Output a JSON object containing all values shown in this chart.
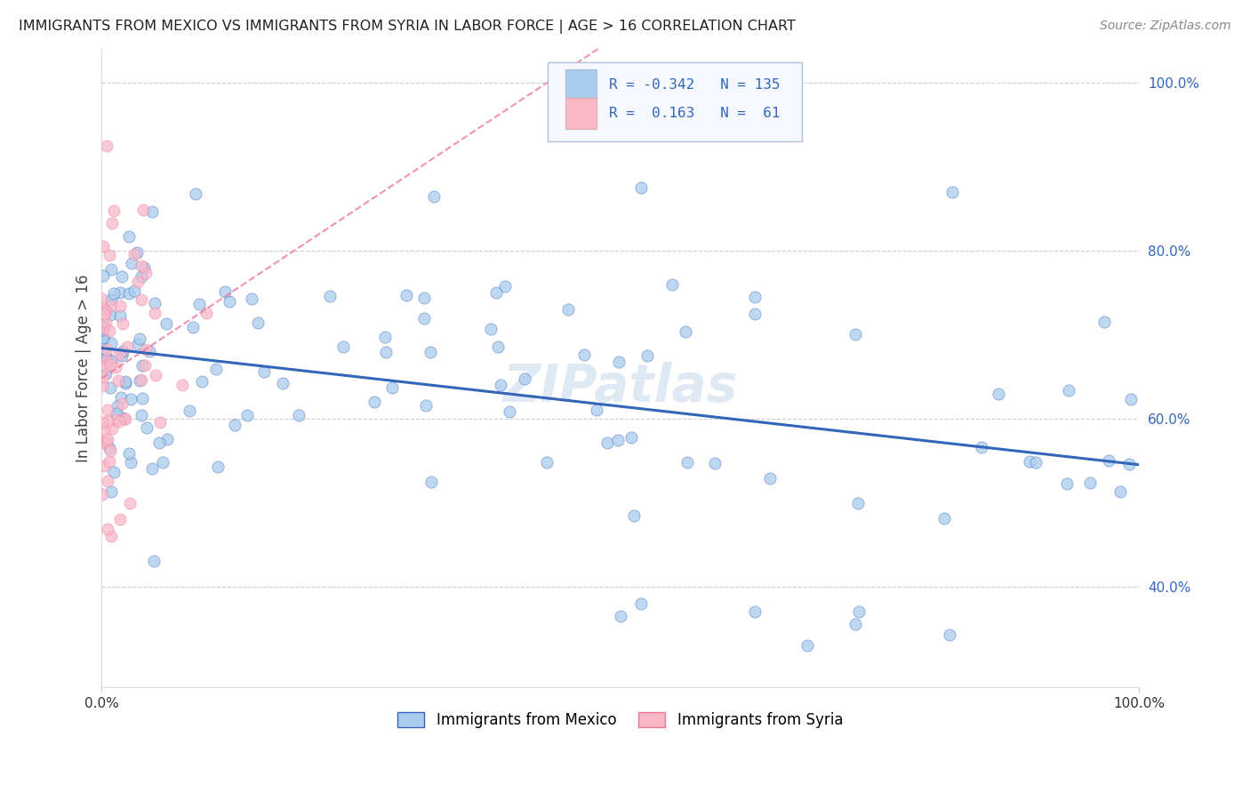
{
  "title": "IMMIGRANTS FROM MEXICO VS IMMIGRANTS FROM SYRIA IN LABOR FORCE | AGE > 16 CORRELATION CHART",
  "source": "Source: ZipAtlas.com",
  "ylabel": "In Labor Force | Age > 16",
  "r_mexico": -0.342,
  "n_mexico": 135,
  "r_syria": 0.163,
  "n_syria": 61,
  "xlim": [
    0.0,
    1.0
  ],
  "ylim": [
    0.28,
    1.04
  ],
  "yticks": [
    0.4,
    0.6,
    0.8,
    1.0
  ],
  "ytick_labels": [
    "40.0%",
    "60.0%",
    "80.0%",
    "100.0%"
  ],
  "xtick_labels": [
    "0.0%",
    "100.0%"
  ],
  "xticks": [
    0.0,
    1.0
  ],
  "color_mexico": "#aaccee",
  "color_syria": "#f8b8c8",
  "line_color_mexico": "#3366bb",
  "line_color_syria": "#ee7799",
  "watermark": "ZIPatlas",
  "background_color": "#ffffff",
  "grid_color": "#cccccc"
}
